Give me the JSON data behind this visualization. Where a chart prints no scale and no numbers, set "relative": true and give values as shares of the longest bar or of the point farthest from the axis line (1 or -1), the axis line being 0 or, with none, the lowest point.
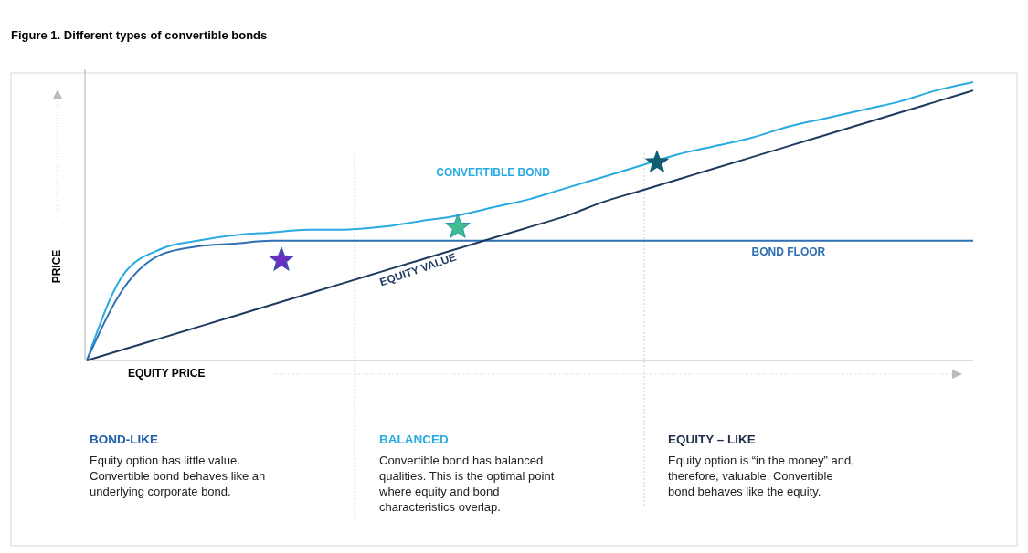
{
  "chart_data": {
    "type": "line",
    "title": "Figure 1. Different types of convertible bonds",
    "xlabel": "EQUITY PRICE",
    "ylabel": "PRICE",
    "relative": true,
    "marker": "none",
    "line_style": "solid",
    "categories": [
      null,
      null,
      null,
      null,
      null,
      null,
      null,
      null,
      null,
      null,
      null,
      null,
      null,
      null,
      null,
      null,
      null,
      null,
      null,
      null,
      null,
      null,
      null,
      null,
      null
    ],
    "series": [
      {
        "name": "CONVERTIBLE BOND",
        "color": "#29abe2",
        "values": [
          0,
          0.31,
          0.4,
          0.43,
          0.45,
          0.46,
          0.47,
          0.47,
          0.48,
          0.5,
          0.52,
          0.55,
          0.58,
          0.62,
          0.66,
          0.7,
          0.74,
          0.77,
          0.8,
          0.84,
          0.87,
          0.9,
          0.93,
          0.97,
          1
        ]
      },
      {
        "name": "BOND FLOOR",
        "color": "#2f6fb3",
        "values": [
          0,
          0.26,
          0.38,
          0.41,
          0.42,
          0.43,
          0.43,
          0.43,
          0.43,
          0.43,
          0.43,
          0.43,
          0.43,
          0.43,
          0.43,
          0.43,
          0.43,
          0.43,
          0.43,
          0.43,
          0.43,
          0.43,
          0.43,
          0.43,
          0.43
        ]
      },
      {
        "name": "EQUITY VALUE",
        "color": "#1f3a5f",
        "values": [
          0,
          0.04,
          0.08,
          0.12,
          0.16,
          0.2,
          0.24,
          0.28,
          0.32,
          0.36,
          0.4,
          0.44,
          0.48,
          0.52,
          0.57,
          0.61,
          0.65,
          0.69,
          0.73,
          0.77,
          0.81,
          0.85,
          0.89,
          0.93,
          0.97
        ]
      }
    ],
    "annotations": [
      "BOND-LIKE",
      "Equity option has little value. Convertible bond behaves like an underlying corporate bond.",
      "BALANCED",
      "Convertible bond has balanced qualities. This is the optimal point where equity and bond characteristics overlap.",
      "EQUITY – LIKE",
      "Equity option is “in the money” and, therefore, valuable. Convertible bond behaves like the equity."
    ]
  }
}
